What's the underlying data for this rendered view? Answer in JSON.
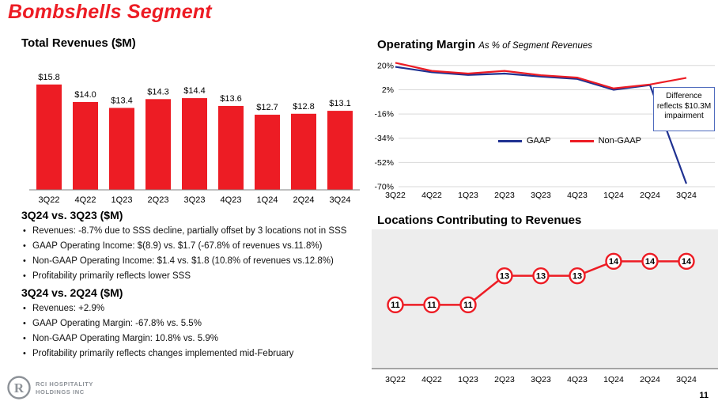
{
  "slide": {
    "title": "Bombshells Segment",
    "page_number": "11"
  },
  "logo": {
    "line1": "RCI HOSPITALITY",
    "line2": "HOLDINGS INC"
  },
  "colors": {
    "red": "#ed1c24",
    "blue": "#1f3191",
    "grid": "#d9d9d9",
    "axis": "#808080",
    "plot_bg": "#ededed"
  },
  "chart_data": [
    {
      "id": "total-revenues",
      "type": "bar",
      "title": "Total Revenues ($M)",
      "categories": [
        "3Q22",
        "4Q22",
        "1Q23",
        "2Q23",
        "3Q23",
        "4Q23",
        "1Q24",
        "2Q24",
        "3Q24"
      ],
      "values": [
        15.8,
        14.0,
        13.4,
        14.3,
        14.4,
        13.6,
        12.7,
        12.8,
        13.1
      ],
      "labels": [
        "$15.8",
        "$14.0",
        "$13.4",
        "$14.3",
        "$14.4",
        "$13.6",
        "$12.7",
        "$12.8",
        "$13.1"
      ],
      "bar_color": "#ed1c24",
      "ylim": [
        5,
        17
      ],
      "grid": false,
      "xlabel": "",
      "ylabel": ""
    },
    {
      "id": "operating-margin",
      "type": "line",
      "title": "Operating Margin",
      "subtitle": "As % of Segment Revenues",
      "categories": [
        "3Q22",
        "4Q22",
        "1Q23",
        "2Q23",
        "3Q23",
        "4Q23",
        "1Q24",
        "2Q24",
        "3Q24"
      ],
      "series": [
        {
          "name": "GAAP",
          "color": "#1f3191",
          "values": [
            19,
            15,
            13,
            14,
            11.8,
            10,
            2,
            5.5,
            -67.8
          ]
        },
        {
          "name": "Non-GAAP",
          "color": "#ed1c24",
          "values": [
            22,
            16,
            14,
            16,
            12.8,
            11,
            3,
            5.9,
            10.8
          ]
        }
      ],
      "y_ticks": [
        20,
        2,
        -16,
        -34,
        -52,
        -70
      ],
      "y_tick_labels": [
        "20%",
        "2%",
        "-16%",
        "-34%",
        "-52%",
        "-70%"
      ],
      "ylim": [
        -70,
        24
      ],
      "grid": true,
      "legend_position": "center",
      "annotation": "Difference reflects $10.3M impairment"
    },
    {
      "id": "locations-contributing",
      "type": "line",
      "title": "Locations Contributing to Revenues",
      "categories": [
        "3Q22",
        "4Q22",
        "1Q23",
        "2Q23",
        "3Q23",
        "4Q23",
        "1Q24",
        "2Q24",
        "3Q24"
      ],
      "values": [
        11,
        11,
        11,
        13,
        13,
        13,
        14,
        14,
        14
      ],
      "marker_labels": [
        "11",
        "11",
        "11",
        "13",
        "13",
        "13",
        "14",
        "14",
        "14"
      ],
      "line_color": "#ed1c24",
      "plot_bg": "#ededed",
      "ylim": [
        6.6,
        16.2
      ],
      "grid": false
    }
  ],
  "commentary": [
    {
      "heading": "3Q24 vs. 3Q23 ($M)",
      "bullets": [
        "Revenues: -8.7% due to SSS decline, partially offset by 3 locations not in SSS",
        "GAAP Operating Income: $(8.9) vs. $1.7 (-67.8% of revenues vs.11.8%)",
        "Non-GAAP Operating Income: $1.4 vs. $1.8 (10.8% of revenues vs.12.8%)",
        "Profitability primarily reflects lower SSS"
      ]
    },
    {
      "heading": "3Q24 vs. 2Q24 ($M)",
      "bullets": [
        "Revenues: +2.9%",
        "GAAP Operating Margin: -67.8% vs. 5.5%",
        "Non-GAAP Operating Margin: 10.8% vs. 5.9%",
        "Profitability primarily reflects changes implemented mid-February"
      ]
    }
  ]
}
